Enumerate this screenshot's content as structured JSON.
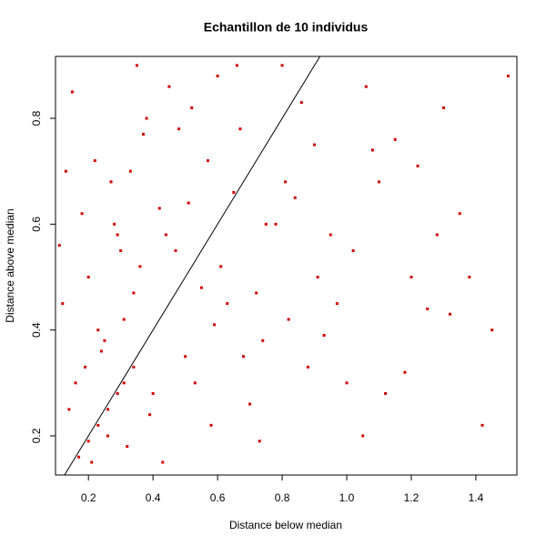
{
  "chart_data": {
    "type": "scatter",
    "title": "Echantillon de 10 individus",
    "x_label": "Distance below median",
    "y_label": "Distance above median",
    "xlim": [
      0.098,
      1.527
    ],
    "ylim": [
      0.126,
      0.917
    ],
    "xticks": [
      0.2,
      0.4,
      0.6,
      0.8,
      {
        "value": 1,
        "label": "1.0"
      },
      1.2,
      1.4
    ],
    "yticks": [
      0.2,
      0.4,
      0.6,
      0.8
    ],
    "series": [
      {
        "color": "#d40000",
        "x": [
          0.15,
          0.22,
          0.3,
          0.35,
          0.42,
          0.48,
          0.55,
          0.6,
          0.68,
          0.75,
          0.82,
          0.9,
          1.0,
          1.1,
          1.2,
          1.3,
          1.45,
          0.12,
          0.18,
          0.25,
          0.33,
          0.4,
          0.47,
          0.52,
          0.58,
          0.65,
          0.72,
          0.8,
          0.88,
          0.95,
          1.05,
          1.15,
          1.25,
          1.35,
          1.5,
          0.14,
          0.2,
          0.27,
          0.31,
          0.38,
          0.44,
          0.5,
          0.57,
          0.63,
          0.7,
          0.78,
          0.86,
          0.93,
          1.02,
          1.12,
          1.22,
          1.38,
          0.16,
          0.21,
          0.24,
          0.28,
          0.32,
          0.36,
          0.13,
          0.19,
          0.26,
          0.29,
          0.34,
          0.39,
          0.45,
          0.53,
          0.61,
          0.67,
          0.74,
          0.84,
          0.97,
          1.08,
          1.18,
          1.28,
          1.42,
          0.11,
          0.23,
          0.37,
          0.43,
          0.51,
          0.59,
          0.66,
          0.73,
          0.81,
          0.91,
          1.06,
          1.32,
          0.17,
          0.2,
          0.23,
          0.26,
          0.29,
          0.31,
          0.34
        ],
        "y": [
          0.85,
          0.72,
          0.55,
          0.9,
          0.63,
          0.78,
          0.48,
          0.88,
          0.35,
          0.6,
          0.42,
          0.75,
          0.3,
          0.68,
          0.5,
          0.82,
          0.4,
          0.45,
          0.62,
          0.38,
          0.7,
          0.28,
          0.55,
          0.82,
          0.22,
          0.66,
          0.47,
          0.9,
          0.33,
          0.58,
          0.2,
          0.76,
          0.44,
          0.62,
          0.88,
          0.25,
          0.5,
          0.68,
          0.42,
          0.8,
          0.58,
          0.35,
          0.72,
          0.45,
          0.26,
          0.6,
          0.83,
          0.39,
          0.55,
          0.28,
          0.71,
          0.5,
          0.3,
          0.15,
          0.36,
          0.6,
          0.18,
          0.52,
          0.7,
          0.33,
          0.2,
          0.58,
          0.47,
          0.24,
          0.86,
          0.3,
          0.52,
          0.78,
          0.38,
          0.65,
          0.45,
          0.74,
          0.32,
          0.58,
          0.22,
          0.56,
          0.4,
          0.77,
          0.15,
          0.64,
          0.41,
          0.9,
          0.19,
          0.68,
          0.5,
          0.86,
          0.43,
          0.16,
          0.19,
          0.22,
          0.25,
          0.28,
          0.3,
          0.33
        ]
      }
    ],
    "reference_line": {
      "color": "#000000",
      "x": [
        0.1,
        0.95
      ],
      "y": [
        0.1,
        0.95
      ]
    }
  }
}
